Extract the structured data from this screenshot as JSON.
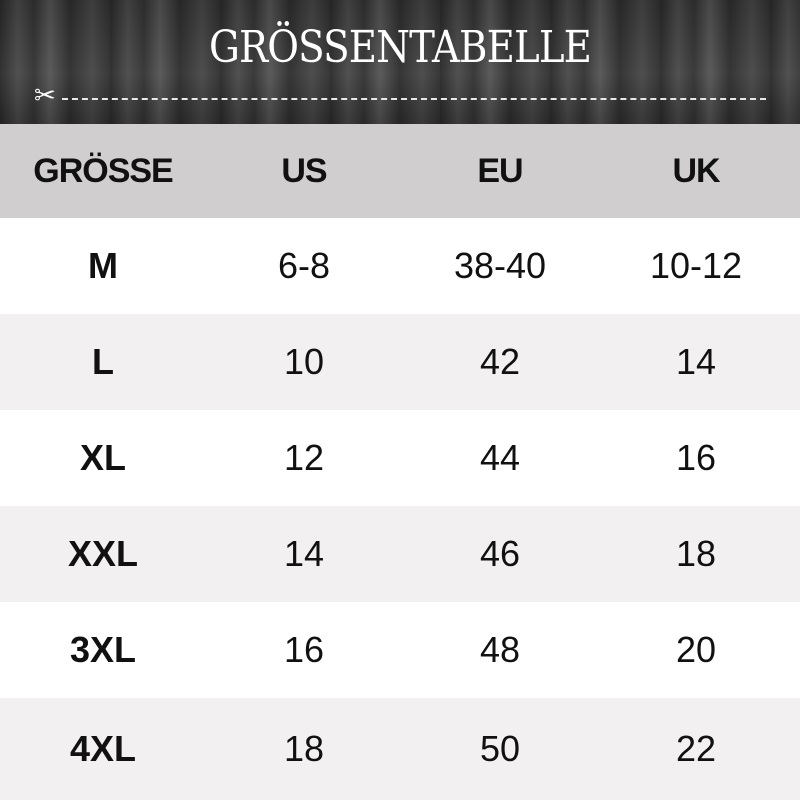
{
  "title": "GRÖSSENTABELLE",
  "icons": {
    "cut": "scissors-icon"
  },
  "colors": {
    "header_bg": "#d0cecf",
    "alt_row": "#f2f0f1"
  },
  "headers": [
    "GRÖSSE",
    "US",
    "EU",
    "UK"
  ],
  "rows": [
    [
      "M",
      "6-8",
      "38-40",
      "10-12"
    ],
    [
      "L",
      "10",
      "42",
      "14"
    ],
    [
      "XL",
      "12",
      "44",
      "16"
    ],
    [
      "XXL",
      "14",
      "46",
      "18"
    ],
    [
      "3XL",
      "16",
      "48",
      "20"
    ],
    [
      "4XL",
      "18",
      "50",
      "22"
    ]
  ]
}
